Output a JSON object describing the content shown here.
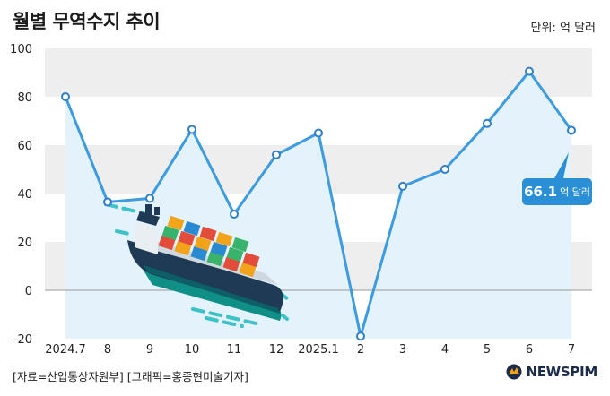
{
  "title": "월별 무역수지 추이",
  "unit_label": "단위: 억 달러",
  "source": "[자료=산업통상자원부] [그래픽=홍종현미술기자]",
  "logo_text": "NEWSPIM",
  "callout": {
    "value": "66.1",
    "unit": "억 달러"
  },
  "colors": {
    "line": "#3d9be0",
    "area": "#e3f2fb",
    "band": "#eeeeee",
    "callout": "#2b8fd6",
    "zero": "#999999"
  },
  "chart_data": {
    "type": "area",
    "title": "월별 무역수지 추이",
    "xlabel": "",
    "ylabel": "",
    "categories": [
      "2024.7",
      "8",
      "9",
      "10",
      "11",
      "12",
      "2025.1",
      "2",
      "3",
      "4",
      "5",
      "6",
      "7"
    ],
    "values": [
      80,
      36.5,
      38,
      66.5,
      31.5,
      56,
      65,
      -19,
      43,
      50,
      69,
      90.5,
      66.1
    ],
    "ylim": [
      -20,
      100
    ],
    "yticks": [
      -20,
      0,
      20,
      40,
      60,
      80,
      100
    ],
    "grid": "alternating bands",
    "markers": true,
    "annotation": {
      "index": 12,
      "text": "66.1 억 달러"
    }
  }
}
